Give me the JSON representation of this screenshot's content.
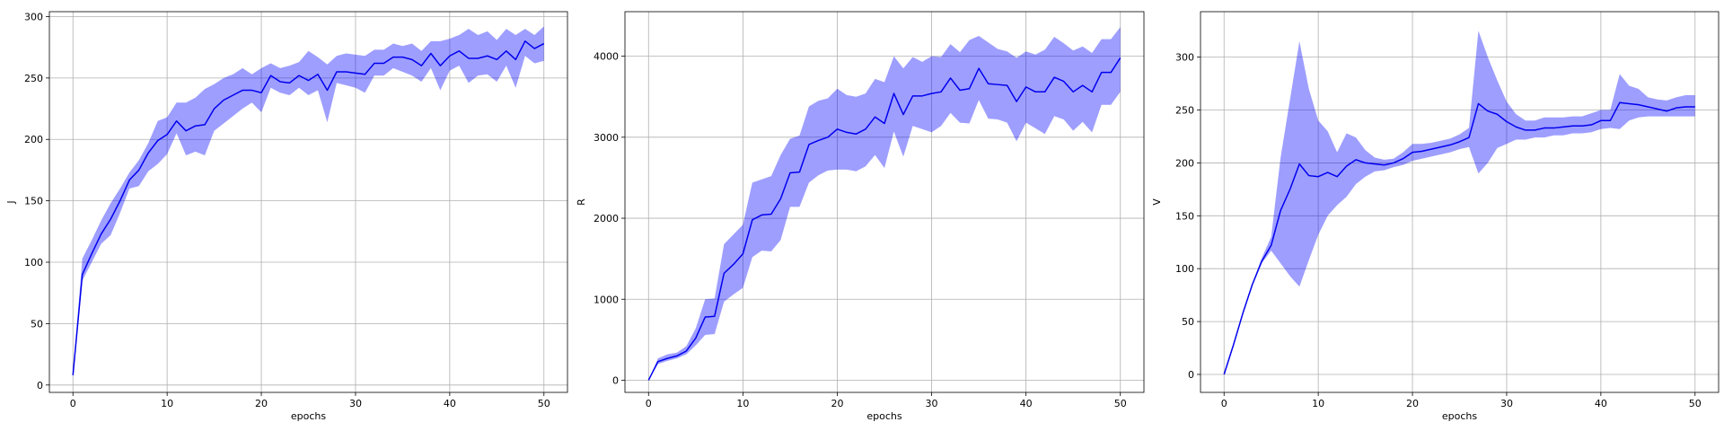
{
  "chart_data": [
    {
      "type": "line",
      "title": "",
      "xlabel": "epochs",
      "ylabel": "J",
      "xlim": [
        -2.5,
        52.5
      ],
      "ylim": [
        -6,
        304
      ],
      "xticks": [
        0,
        10,
        20,
        30,
        40,
        50
      ],
      "yticks": [
        0,
        50,
        100,
        150,
        200,
        250,
        300
      ],
      "grid": true,
      "colors": {
        "line": "#0000ee",
        "band": "#8080ff"
      },
      "x": [
        0,
        1,
        2,
        3,
        4,
        5,
        6,
        7,
        8,
        9,
        10,
        11,
        12,
        13,
        14,
        15,
        16,
        17,
        18,
        19,
        20,
        21,
        22,
        23,
        24,
        25,
        26,
        27,
        28,
        29,
        30,
        31,
        32,
        33,
        34,
        35,
        36,
        37,
        38,
        39,
        40,
        41,
        42,
        43,
        44,
        45,
        46,
        47,
        48,
        49,
        50
      ],
      "mean": [
        8,
        90,
        107,
        123,
        135,
        150,
        167,
        175,
        189,
        199,
        204,
        215,
        207,
        211,
        212,
        225,
        232,
        236,
        240,
        240,
        238,
        252,
        247,
        246,
        252,
        248,
        253,
        240,
        255,
        255,
        254,
        253,
        262,
        262,
        267,
        267,
        265,
        260,
        270,
        260,
        268,
        272,
        266,
        266,
        268,
        265,
        272,
        265,
        280,
        274,
        278
      ],
      "upper": [
        10,
        103,
        118,
        134,
        148,
        160,
        173,
        183,
        197,
        215,
        218,
        230,
        230,
        234,
        241,
        245,
        250,
        253,
        258,
        253,
        258,
        262,
        258,
        260,
        263,
        272,
        267,
        261,
        268,
        270,
        269,
        268,
        273,
        273,
        278,
        276,
        278,
        272,
        280,
        280,
        282,
        285,
        290,
        285,
        288,
        281,
        290,
        285,
        290,
        285,
        292
      ],
      "lower": [
        6,
        85,
        100,
        115,
        122,
        140,
        160,
        162,
        174,
        180,
        188,
        205,
        187,
        190,
        187,
        207,
        213,
        219,
        225,
        230,
        222,
        242,
        238,
        236,
        242,
        236,
        240,
        214,
        246,
        244,
        242,
        238,
        252,
        252,
        258,
        255,
        252,
        247,
        258,
        240,
        256,
        260,
        246,
        252,
        253,
        247,
        260,
        242,
        268,
        262,
        264
      ]
    },
    {
      "type": "line",
      "title": "",
      "xlabel": "epochs",
      "ylabel": "R",
      "xlim": [
        -2.5,
        52.5
      ],
      "ylim": [
        -150,
        4550
      ],
      "xticks": [
        0,
        10,
        20,
        30,
        40,
        50
      ],
      "yticks": [
        0,
        1000,
        2000,
        3000,
        4000
      ],
      "grid": true,
      "colors": {
        "line": "#0000ee",
        "band": "#8080ff"
      },
      "x": [
        0,
        1,
        2,
        3,
        4,
        5,
        6,
        7,
        8,
        9,
        10,
        11,
        12,
        13,
        14,
        15,
        16,
        17,
        18,
        19,
        20,
        21,
        22,
        23,
        24,
        25,
        26,
        27,
        28,
        29,
        30,
        31,
        32,
        33,
        34,
        35,
        36,
        37,
        38,
        39,
        40,
        41,
        42,
        43,
        44,
        45,
        46,
        47,
        48,
        49,
        50
      ],
      "mean": [
        0,
        230,
        270,
        300,
        360,
        520,
        780,
        790,
        1320,
        1430,
        1560,
        1980,
        2040,
        2050,
        2240,
        2560,
        2570,
        2910,
        2960,
        3000,
        3100,
        3060,
        3040,
        3100,
        3250,
        3170,
        3540,
        3280,
        3510,
        3510,
        3540,
        3560,
        3730,
        3580,
        3600,
        3850,
        3660,
        3650,
        3640,
        3440,
        3620,
        3560,
        3560,
        3740,
        3690,
        3560,
        3640,
        3560,
        3800,
        3800,
        3980
      ],
      "upper": [
        0,
        270,
        320,
        340,
        420,
        640,
        1000,
        1010,
        1680,
        1800,
        1920,
        2440,
        2480,
        2520,
        2780,
        2980,
        3020,
        3380,
        3450,
        3480,
        3600,
        3520,
        3500,
        3540,
        3720,
        3680,
        4000,
        3850,
        3990,
        3930,
        4000,
        3990,
        4150,
        4050,
        4200,
        4250,
        4170,
        4090,
        4060,
        3980,
        4060,
        4020,
        4080,
        4240,
        4160,
        4070,
        4120,
        4040,
        4210,
        4210,
        4360
      ],
      "lower": [
        0,
        200,
        240,
        270,
        320,
        430,
        560,
        570,
        970,
        1060,
        1140,
        1520,
        1600,
        1590,
        1730,
        2140,
        2140,
        2440,
        2530,
        2590,
        2600,
        2600,
        2580,
        2640,
        2780,
        2620,
        3070,
        2760,
        3140,
        3100,
        3060,
        3140,
        3300,
        3180,
        3170,
        3460,
        3230,
        3220,
        3180,
        2950,
        3180,
        3110,
        3040,
        3260,
        3220,
        3080,
        3190,
        3060,
        3400,
        3400,
        3560
      ]
    },
    {
      "type": "line",
      "title": "",
      "xlabel": "epochs",
      "ylabel": "V",
      "xlim": [
        -2.5,
        52.5
      ],
      "ylim": [
        -17,
        343
      ],
      "xticks": [
        0,
        10,
        20,
        30,
        40,
        50
      ],
      "yticks": [
        0,
        50,
        100,
        150,
        200,
        250,
        300
      ],
      "grid": true,
      "colors": {
        "line": "#0000ee",
        "band": "#8080ff"
      },
      "x": [
        0,
        1,
        2,
        3,
        4,
        5,
        6,
        7,
        8,
        9,
        10,
        11,
        12,
        13,
        14,
        15,
        16,
        17,
        18,
        19,
        20,
        21,
        22,
        23,
        24,
        25,
        26,
        27,
        28,
        29,
        30,
        31,
        32,
        33,
        34,
        35,
        36,
        37,
        38,
        39,
        40,
        41,
        42,
        43,
        44,
        45,
        46,
        47,
        48,
        49,
        50
      ],
      "mean": [
        0,
        28,
        58,
        85,
        107,
        122,
        155,
        175,
        199,
        188,
        187,
        191,
        187,
        197,
        203,
        200,
        199,
        198,
        200,
        204,
        210,
        211,
        213,
        215,
        217,
        220,
        224,
        256,
        249,
        246,
        239,
        234,
        231,
        231,
        233,
        233,
        234,
        235,
        235,
        236,
        240,
        240,
        257,
        256,
        255,
        253,
        251,
        249,
        252,
        253,
        253
      ],
      "upper": [
        0,
        28,
        58,
        86,
        110,
        130,
        205,
        260,
        315,
        270,
        240,
        230,
        210,
        228,
        224,
        212,
        205,
        203,
        204,
        210,
        218,
        218,
        219,
        221,
        223,
        227,
        233,
        325,
        300,
        278,
        258,
        246,
        240,
        240,
        243,
        243,
        243,
        244,
        244,
        247,
        250,
        250,
        284,
        273,
        270,
        262,
        260,
        259,
        262,
        264,
        264
      ],
      "lower": [
        0,
        28,
        57,
        84,
        105,
        117,
        105,
        93,
        83,
        108,
        132,
        150,
        160,
        168,
        180,
        187,
        192,
        193,
        196,
        198,
        202,
        204,
        206,
        208,
        210,
        213,
        215,
        190,
        200,
        214,
        218,
        222,
        222,
        224,
        224,
        226,
        226,
        228,
        228,
        229,
        232,
        233,
        232,
        240,
        243,
        244,
        244,
        244,
        244,
        244,
        244
      ]
    }
  ]
}
